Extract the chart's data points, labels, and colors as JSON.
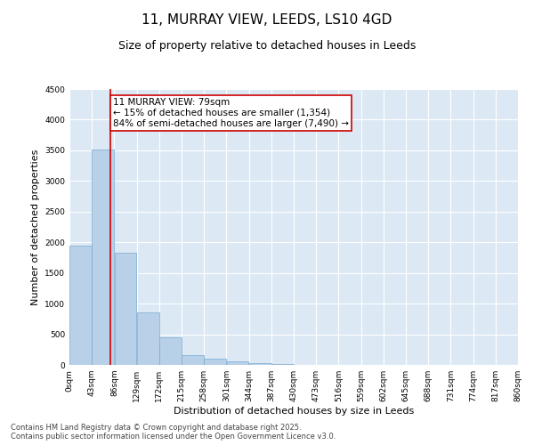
{
  "title_line1": "11, MURRAY VIEW, LEEDS, LS10 4GD",
  "title_line2": "Size of property relative to detached houses in Leeds",
  "xlabel": "Distribution of detached houses by size in Leeds",
  "ylabel": "Number of detached properties",
  "background_color": "#ffffff",
  "plot_bg_color": "#dce9f5",
  "bar_color": "#b8d0e8",
  "bar_edge_color": "#7aaacf",
  "annotation_box_color": "#cc0000",
  "property_line_color": "#cc0000",
  "property_size": 79,
  "annotation_text": "11 MURRAY VIEW: 79sqm\n← 15% of detached houses are smaller (1,354)\n84% of semi-detached houses are larger (7,490) →",
  "bin_edges": [
    0,
    43,
    86,
    129,
    172,
    215,
    258,
    301,
    344,
    387,
    430,
    473,
    516,
    559,
    602,
    645,
    688,
    731,
    774,
    817,
    860
  ],
  "bin_labels": [
    "0sqm",
    "43sqm",
    "86sqm",
    "129sqm",
    "172sqm",
    "215sqm",
    "258sqm",
    "301sqm",
    "344sqm",
    "387sqm",
    "430sqm",
    "473sqm",
    "516sqm",
    "559sqm",
    "602sqm",
    "645sqm",
    "688sqm",
    "731sqm",
    "774sqm",
    "817sqm",
    "860sqm"
  ],
  "bar_heights": [
    1950,
    3520,
    1830,
    860,
    450,
    165,
    95,
    55,
    25,
    8,
    3,
    1,
    0,
    0,
    0,
    0,
    0,
    0,
    0,
    0
  ],
  "ylim": [
    0,
    4500
  ],
  "yticks": [
    0,
    500,
    1000,
    1500,
    2000,
    2500,
    3000,
    3500,
    4000,
    4500
  ],
  "footer_line1": "Contains HM Land Registry data © Crown copyright and database right 2025.",
  "footer_line2": "Contains public sector information licensed under the Open Government Licence v3.0.",
  "grid_color": "#ffffff",
  "title_fontsize": 11,
  "subtitle_fontsize": 9,
  "axis_label_fontsize": 8,
  "tick_fontsize": 6.5,
  "annotation_fontsize": 7.5,
  "footer_fontsize": 6
}
